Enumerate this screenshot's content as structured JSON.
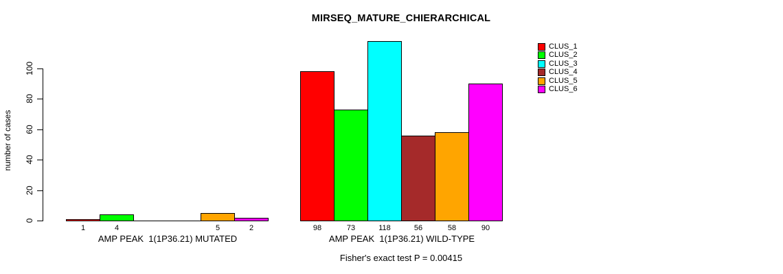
{
  "title": "MIRSEQ_MATURE_CHIERARCHICAL",
  "y_axis": {
    "label": "number of cases",
    "ticks": [
      0,
      20,
      40,
      60,
      80,
      100
    ]
  },
  "caption": "Fisher's exact test P = 0.00415",
  "legend": {
    "position": "top-right",
    "entries": [
      {
        "label": "CLUS_1",
        "color": "#FF0000"
      },
      {
        "label": "CLUS_2",
        "color": "#00FF00"
      },
      {
        "label": "CLUS_3",
        "color": "#00FFFF"
      },
      {
        "label": "CLUS_4",
        "color": "#A52A2A"
      },
      {
        "label": "CLUS_5",
        "color": "#FFA500"
      },
      {
        "label": "CLUS_6",
        "color": "#FF00FF"
      }
    ]
  },
  "chart_data": {
    "type": "bar",
    "title": "MIRSEQ_MATURE_CHIERARCHICAL",
    "ylabel": "number of cases",
    "xlabel": "",
    "ylim": [
      0,
      118
    ],
    "yticks": [
      0,
      20,
      40,
      60,
      80,
      100
    ],
    "grid": false,
    "legend_position": "top-right",
    "bar_value_labels": true,
    "categories": [
      "AMP PEAK  1(1P36.21) MUTATED",
      "AMP PEAK  1(1P36.21) WILD-TYPE"
    ],
    "series": [
      {
        "name": "CLUS_1",
        "color": "#FF0000",
        "values": [
          1,
          98
        ]
      },
      {
        "name": "CLUS_2",
        "color": "#00FF00",
        "values": [
          4,
          73
        ]
      },
      {
        "name": "CLUS_3",
        "color": "#00FFFF",
        "values": [
          0,
          118
        ]
      },
      {
        "name": "CLUS_4",
        "color": "#A52A2A",
        "values": [
          0,
          56
        ]
      },
      {
        "name": "CLUS_5",
        "color": "#FFA500",
        "values": [
          5,
          58
        ]
      },
      {
        "name": "CLUS_6",
        "color": "#FF00FF",
        "values": [
          2,
          90
        ]
      }
    ],
    "caption": "Fisher's exact test P = 0.00415"
  }
}
